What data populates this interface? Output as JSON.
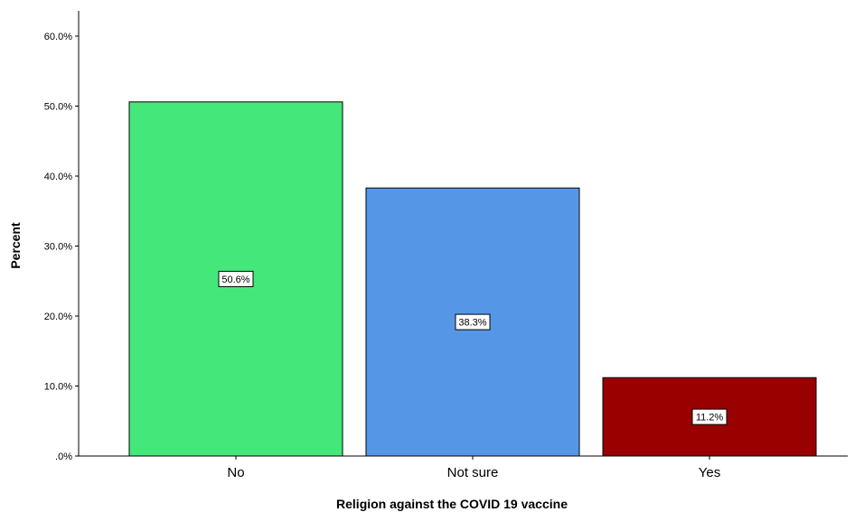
{
  "chart_data": {
    "type": "bar",
    "categories": [
      "No",
      "Not sure",
      "Yes"
    ],
    "values": [
      50.6,
      38.3,
      11.2
    ],
    "data_labels": [
      "50.6%",
      "38.3%",
      "11.2%"
    ],
    "bar_colors": [
      "#44e87a",
      "#5597e6",
      "#990000"
    ],
    "title": "",
    "xlabel": "Religion against the COVID 19 vaccine",
    "ylabel": "Percent",
    "ylim": [
      0,
      60
    ],
    "yticks": [
      0,
      10,
      20,
      30,
      40,
      50,
      60
    ],
    "ytick_labels": [
      ".0%",
      "10.0%",
      "20.0%",
      "30.0%",
      "40.0%",
      "50.0%",
      "60.0%"
    ],
    "grid": false,
    "legend": "none"
  }
}
